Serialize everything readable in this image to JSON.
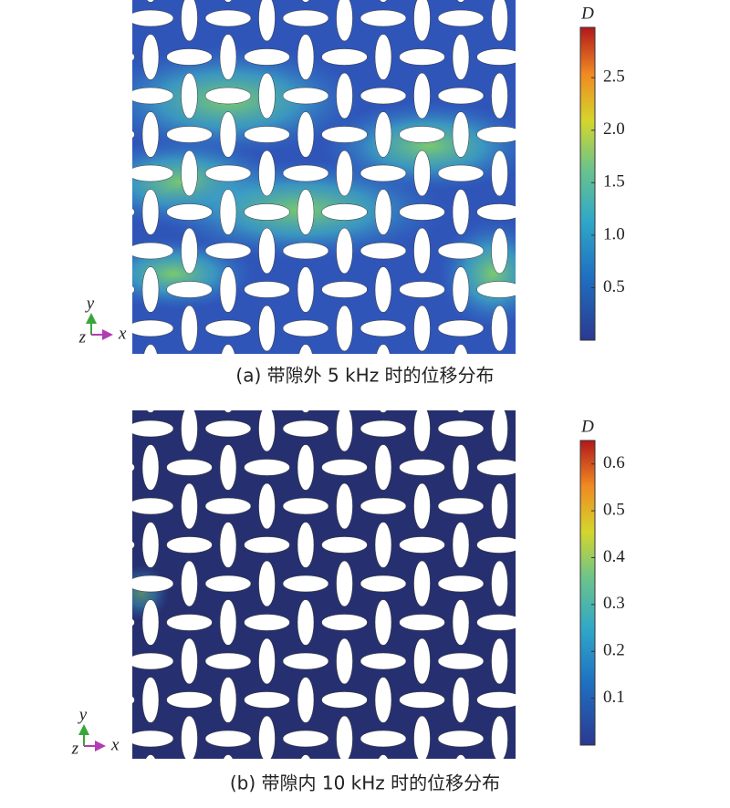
{
  "panels": [
    {
      "caption": "(a) 带隙外 5 kHz 时的位移分布",
      "colorbar": {
        "label": "D",
        "range": [
          0,
          2.98
        ],
        "ticks": [
          0.5,
          {
            "value": 1,
            "label": "1.0"
          },
          1.5,
          {
            "value": 2,
            "label": "2.0"
          },
          2.5
        ]
      },
      "axes": {
        "x": "x",
        "y": "y",
        "z": "z"
      }
    },
    {
      "caption": "(b) 带隙内 10 kHz 时的位移分布",
      "colorbar": {
        "label": "D",
        "range": [
          0,
          0.65
        ],
        "ticks": [
          0.1,
          0.2,
          0.3,
          0.4,
          0.5,
          0.6
        ]
      },
      "axes": {
        "x": "x",
        "y": "y",
        "z": "z"
      }
    }
  ]
}
